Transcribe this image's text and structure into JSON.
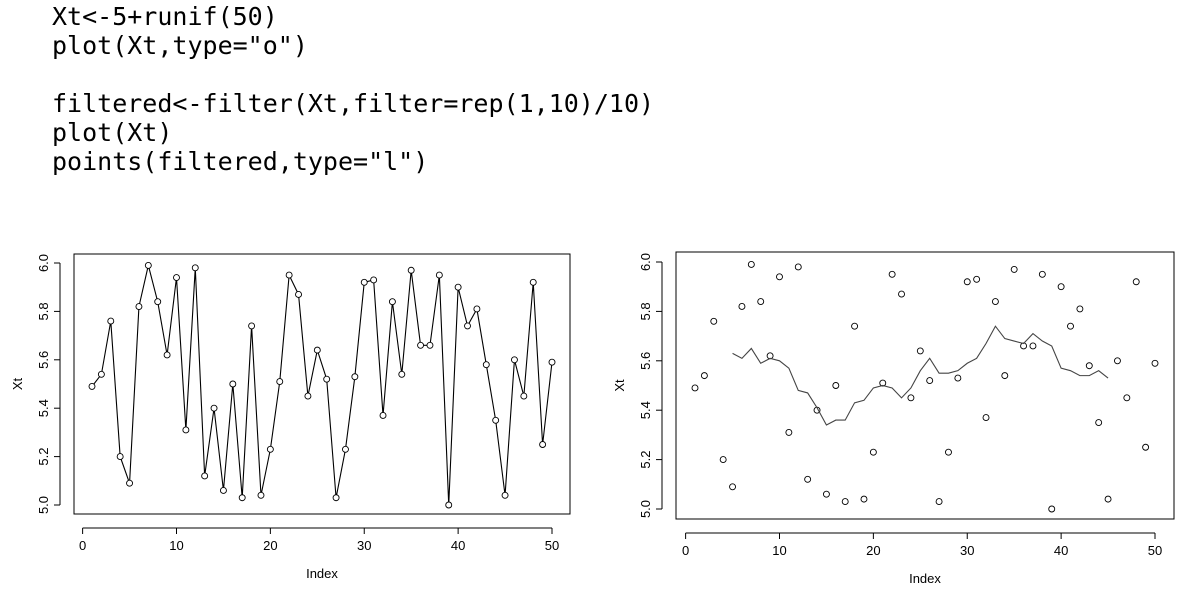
{
  "code": {
    "lines": [
      "Xt<-5+runif(50)",
      "plot(Xt,type=\"o\")",
      "",
      "filtered<-filter(Xt,filter=rep(1,10)/10)",
      "plot(Xt)",
      "points(filtered,type=\"l\")"
    ]
  },
  "chart_data": [
    {
      "type": "line",
      "title": "",
      "xlabel": "Index",
      "ylabel": "Xt",
      "xlim": [
        1,
        50
      ],
      "ylim": [
        5.0,
        6.0
      ],
      "x_ticks": [
        0,
        10,
        20,
        30,
        40,
        50
      ],
      "x_tick_labels": [
        "0",
        "10",
        "20",
        "30",
        "40",
        "50"
      ],
      "y_ticks": [
        5.0,
        5.2,
        5.4,
        5.6,
        5.8,
        6.0
      ],
      "y_tick_labels": [
        "5.0",
        "5.2",
        "5.4",
        "5.6",
        "5.8",
        "6.0"
      ],
      "grid": false,
      "series": [
        {
          "style": "points-and-lines",
          "color": "#000000",
          "values": [
            5.49,
            5.54,
            5.76,
            5.2,
            5.09,
            5.82,
            5.99,
            5.84,
            5.62,
            5.94,
            5.31,
            5.98,
            5.12,
            5.4,
            5.06,
            5.5,
            5.03,
            5.74,
            5.04,
            5.23,
            5.51,
            5.95,
            5.87,
            5.45,
            5.64,
            5.52,
            5.03,
            5.23,
            5.53,
            5.92,
            5.93,
            5.37,
            5.84,
            5.54,
            5.97,
            5.66,
            5.66,
            5.95,
            5.0,
            5.9,
            5.74,
            5.81,
            5.58,
            5.35,
            5.04,
            5.6,
            5.45,
            5.92,
            5.25,
            5.59
          ]
        }
      ]
    },
    {
      "type": "scatter",
      "title": "",
      "xlabel": "Index",
      "ylabel": "Xt",
      "xlim": [
        1,
        50
      ],
      "ylim": [
        5.0,
        6.0
      ],
      "x_ticks": [
        0,
        10,
        20,
        30,
        40,
        50
      ],
      "x_tick_labels": [
        "0",
        "10",
        "20",
        "30",
        "40",
        "50"
      ],
      "y_ticks": [
        5.0,
        5.2,
        5.4,
        5.6,
        5.8,
        6.0
      ],
      "y_tick_labels": [
        "5.0",
        "5.2",
        "5.4",
        "5.6",
        "5.8",
        "6.0"
      ],
      "grid": false,
      "series": [
        {
          "style": "points",
          "color": "#000000",
          "values": [
            5.49,
            5.54,
            5.76,
            5.2,
            5.09,
            5.82,
            5.99,
            5.84,
            5.62,
            5.94,
            5.31,
            5.98,
            5.12,
            5.4,
            5.06,
            5.5,
            5.03,
            5.74,
            5.04,
            5.23,
            5.51,
            5.95,
            5.87,
            5.45,
            5.64,
            5.52,
            5.03,
            5.23,
            5.53,
            5.92,
            5.93,
            5.37,
            5.84,
            5.54,
            5.97,
            5.66,
            5.66,
            5.95,
            5.0,
            5.9,
            5.74,
            5.81,
            5.58,
            5.35,
            5.04,
            5.6,
            5.45,
            5.92,
            5.25,
            5.59
          ]
        },
        {
          "style": "line",
          "color": "#444444",
          "x": [
            5,
            6,
            7,
            8,
            9,
            10,
            11,
            12,
            13,
            14,
            15,
            16,
            17,
            18,
            19,
            20,
            21,
            22,
            23,
            24,
            25,
            26,
            27,
            28,
            29,
            30,
            31,
            32,
            33,
            34,
            35,
            36,
            37,
            38,
            39,
            40,
            41,
            42,
            43,
            44,
            45
          ],
          "values": [
            5.63,
            5.61,
            5.65,
            5.59,
            5.61,
            5.6,
            5.57,
            5.48,
            5.47,
            5.41,
            5.34,
            5.36,
            5.36,
            5.43,
            5.44,
            5.49,
            5.5,
            5.49,
            5.45,
            5.49,
            5.56,
            5.61,
            5.55,
            5.55,
            5.56,
            5.59,
            5.61,
            5.67,
            5.74,
            5.69,
            5.68,
            5.67,
            5.71,
            5.68,
            5.66,
            5.57,
            5.56,
            5.54,
            5.54,
            5.56,
            5.53
          ]
        }
      ]
    }
  ]
}
